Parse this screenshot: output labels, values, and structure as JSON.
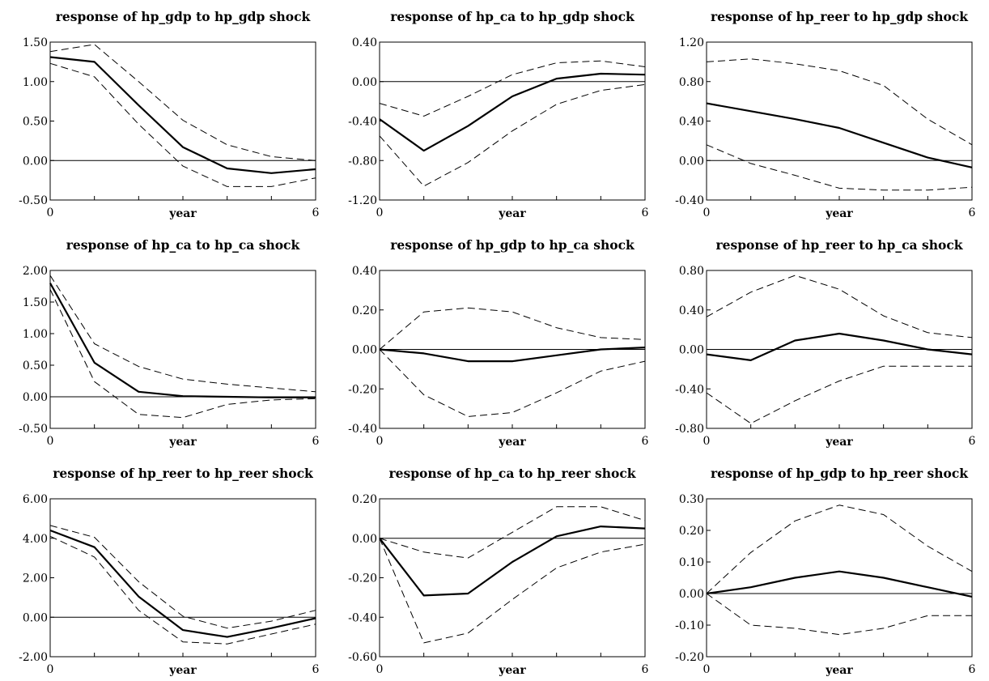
{
  "chart_data": [
    {
      "type": "line",
      "title": "response of hp_gdp to hp_gdp shock",
      "xlabel": "year",
      "x": [
        0,
        1,
        2,
        3,
        4,
        5,
        6
      ],
      "x_ticks": [
        0,
        6
      ],
      "yticks": [
        "1.50",
        "1.00",
        "0.50",
        "0.00",
        "-0.50"
      ],
      "ylim": [
        -0.5,
        1.5
      ],
      "series": [
        {
          "style": "solid",
          "values": [
            1.31,
            1.25,
            0.7,
            0.17,
            -0.1,
            -0.16,
            -0.11
          ]
        },
        {
          "style": "dashed",
          "values": [
            1.38,
            1.47,
            1.0,
            0.51,
            0.2,
            0.05,
            0.0
          ]
        },
        {
          "style": "dashed",
          "values": [
            1.23,
            1.06,
            0.46,
            -0.07,
            -0.33,
            -0.33,
            -0.22
          ]
        }
      ]
    },
    {
      "type": "line",
      "title": "response of hp_ca to hp_gdp shock",
      "xlabel": "year",
      "x": [
        0,
        1,
        2,
        3,
        4,
        5,
        6
      ],
      "x_ticks": [
        0,
        6
      ],
      "yticks": [
        "0.40",
        "0.00",
        "-0.40",
        "-0.80",
        "-1.20"
      ],
      "ylim": [
        -1.2,
        0.4
      ],
      "series": [
        {
          "style": "solid",
          "values": [
            -0.38,
            -0.7,
            -0.45,
            -0.15,
            0.03,
            0.08,
            0.07
          ]
        },
        {
          "style": "dashed",
          "values": [
            -0.22,
            -0.35,
            -0.15,
            0.07,
            0.19,
            0.21,
            0.15
          ]
        },
        {
          "style": "dashed",
          "values": [
            -0.55,
            -1.06,
            -0.82,
            -0.5,
            -0.23,
            -0.09,
            -0.03
          ]
        }
      ]
    },
    {
      "type": "line",
      "title": "response of hp_reer to hp_gdp shock",
      "xlabel": "year",
      "x": [
        0,
        1,
        2,
        3,
        4,
        5,
        6
      ],
      "x_ticks": [
        0,
        6
      ],
      "yticks": [
        "1.20",
        "0.80",
        "0.40",
        "0.00",
        "-0.40"
      ],
      "ylim": [
        -0.4,
        1.2
      ],
      "series": [
        {
          "style": "solid",
          "values": [
            0.58,
            0.5,
            0.42,
            0.33,
            0.18,
            0.03,
            -0.07
          ]
        },
        {
          "style": "dashed",
          "values": [
            1.0,
            1.03,
            0.98,
            0.91,
            0.76,
            0.42,
            0.16
          ]
        },
        {
          "style": "dashed",
          "values": [
            0.16,
            -0.03,
            -0.15,
            -0.28,
            -0.3,
            -0.3,
            -0.27
          ]
        }
      ]
    },
    {
      "type": "line",
      "title": "response of hp_ca to hp_ca shock",
      "xlabel": "year",
      "x": [
        0,
        1,
        2,
        3,
        4,
        5,
        6
      ],
      "x_ticks": [
        0,
        6
      ],
      "yticks": [
        "2.00",
        "1.50",
        "1.00",
        "0.50",
        "0.00",
        "-0.50"
      ],
      "ylim": [
        -0.5,
        2.0
      ],
      "series": [
        {
          "style": "solid",
          "values": [
            1.8,
            0.54,
            0.08,
            0.01,
            0.0,
            -0.01,
            -0.01
          ]
        },
        {
          "style": "dashed",
          "values": [
            1.92,
            0.84,
            0.48,
            0.28,
            0.2,
            0.14,
            0.08
          ]
        },
        {
          "style": "dashed",
          "values": [
            1.7,
            0.24,
            -0.28,
            -0.33,
            -0.12,
            -0.05,
            -0.03
          ]
        }
      ]
    },
    {
      "type": "line",
      "title": "response of hp_gdp to hp_ca shock",
      "xlabel": "year",
      "x": [
        0,
        1,
        2,
        3,
        4,
        5,
        6
      ],
      "x_ticks": [
        0,
        6
      ],
      "yticks": [
        "0.40",
        "0.20",
        "0.00",
        "-0.20",
        "-0.40"
      ],
      "ylim": [
        -0.4,
        0.4
      ],
      "series": [
        {
          "style": "solid",
          "values": [
            0.0,
            -0.02,
            -0.06,
            -0.06,
            -0.03,
            0.0,
            0.01
          ]
        },
        {
          "style": "dashed",
          "values": [
            0.0,
            0.19,
            0.21,
            0.19,
            0.11,
            0.06,
            0.05
          ]
        },
        {
          "style": "dashed",
          "values": [
            0.0,
            -0.23,
            -0.34,
            -0.32,
            -0.22,
            -0.11,
            -0.06
          ]
        }
      ]
    },
    {
      "type": "line",
      "title": "response of hp_reer to hp_ca shock",
      "xlabel": "year",
      "x": [
        0,
        1,
        2,
        3,
        4,
        5,
        6
      ],
      "x_ticks": [
        0,
        6
      ],
      "yticks": [
        "0.80",
        "0.40",
        "0.00",
        "-0.40",
        "-0.80"
      ],
      "ylim": [
        -0.8,
        0.8
      ],
      "series": [
        {
          "style": "solid",
          "values": [
            -0.05,
            -0.11,
            0.09,
            0.16,
            0.09,
            0.0,
            -0.05
          ]
        },
        {
          "style": "dashed",
          "values": [
            0.33,
            0.58,
            0.75,
            0.61,
            0.34,
            0.17,
            0.12
          ]
        },
        {
          "style": "dashed",
          "values": [
            -0.44,
            -0.75,
            -0.52,
            -0.32,
            -0.17,
            -0.17,
            -0.17
          ]
        }
      ]
    },
    {
      "type": "line",
      "title": "response of hp_reer to hp_reer shock",
      "xlabel": "year",
      "x": [
        0,
        1,
        2,
        3,
        4,
        5,
        6
      ],
      "x_ticks": [
        0,
        6
      ],
      "yticks": [
        "6.00",
        "4.00",
        "2.00",
        "0.00",
        "-2.00"
      ],
      "ylim": [
        -2.0,
        6.0
      ],
      "series": [
        {
          "style": "solid",
          "values": [
            4.4,
            3.55,
            1.05,
            -0.65,
            -1.0,
            -0.55,
            -0.05
          ]
        },
        {
          "style": "dashed",
          "values": [
            4.65,
            4.05,
            1.8,
            0.05,
            -0.55,
            -0.2,
            0.35
          ]
        },
        {
          "style": "dashed",
          "values": [
            4.1,
            3.05,
            0.35,
            -1.25,
            -1.35,
            -0.85,
            -0.35
          ]
        }
      ]
    },
    {
      "type": "line",
      "title": "response of hp_ca to hp_reer shock",
      "xlabel": "year",
      "x": [
        0,
        1,
        2,
        3,
        4,
        5,
        6
      ],
      "x_ticks": [
        0,
        6
      ],
      "yticks": [
        "0.20",
        "0.00",
        "-0.20",
        "-0.40",
        "-0.60"
      ],
      "ylim": [
        -0.6,
        0.2
      ],
      "series": [
        {
          "style": "solid",
          "values": [
            0.0,
            -0.29,
            -0.28,
            -0.12,
            0.01,
            0.06,
            0.05
          ]
        },
        {
          "style": "dashed",
          "values": [
            0.0,
            -0.07,
            -0.1,
            0.03,
            0.16,
            0.16,
            0.09
          ]
        },
        {
          "style": "dashed",
          "values": [
            0.0,
            -0.53,
            -0.48,
            -0.31,
            -0.15,
            -0.07,
            -0.03
          ]
        }
      ]
    },
    {
      "type": "line",
      "title": "response of hp_gdp to hp_reer shock",
      "xlabel": "year",
      "x": [
        0,
        1,
        2,
        3,
        4,
        5,
        6
      ],
      "x_ticks": [
        0,
        6
      ],
      "yticks": [
        "0.30",
        "0.20",
        "0.10",
        "0.00",
        "-0.10",
        "-0.20"
      ],
      "ylim": [
        -0.2,
        0.3
      ],
      "series": [
        {
          "style": "solid",
          "values": [
            0.0,
            0.02,
            0.05,
            0.07,
            0.05,
            0.02,
            -0.01
          ]
        },
        {
          "style": "dashed",
          "values": [
            0.0,
            0.13,
            0.23,
            0.28,
            0.25,
            0.15,
            0.07
          ]
        },
        {
          "style": "dashed",
          "values": [
            0.0,
            -0.1,
            -0.11,
            -0.13,
            -0.11,
            -0.07,
            -0.07
          ]
        }
      ]
    }
  ]
}
